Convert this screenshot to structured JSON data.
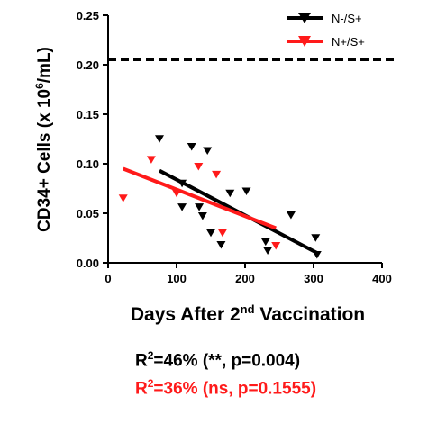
{
  "chart_data": {
    "type": "scatter",
    "ylabel_parts": {
      "pre": "CD34+ Cells (x 10",
      "sup": "6",
      "post": "/mL)"
    },
    "xlabel_parts": {
      "pre": "Days After 2",
      "sup": "nd",
      "post": " Vaccination"
    },
    "xlim": [
      0,
      400
    ],
    "ylim": [
      0,
      0.25
    ],
    "xticks": [
      "0",
      "100",
      "200",
      "300",
      "400"
    ],
    "yticks": [
      "0.00",
      "0.05",
      "0.10",
      "0.15",
      "0.20",
      "0.25"
    ],
    "legend_position": "top-right",
    "reference_line": {
      "y": 0.205,
      "x_range": [
        0,
        420
      ]
    },
    "series": [
      {
        "name": "N-/S+",
        "color": "#000000",
        "points": [
          {
            "x": 75,
            "y": 0.125
          },
          {
            "x": 108,
            "y": 0.08
          },
          {
            "x": 108,
            "y": 0.056
          },
          {
            "x": 122,
            "y": 0.117
          },
          {
            "x": 133,
            "y": 0.056
          },
          {
            "x": 138,
            "y": 0.047
          },
          {
            "x": 145,
            "y": 0.113
          },
          {
            "x": 150,
            "y": 0.03
          },
          {
            "x": 165,
            "y": 0.018
          },
          {
            "x": 178,
            "y": 0.07
          },
          {
            "x": 202,
            "y": 0.072
          },
          {
            "x": 230,
            "y": 0.021
          },
          {
            "x": 233,
            "y": 0.012
          },
          {
            "x": 267,
            "y": 0.048
          },
          {
            "x": 303,
            "y": 0.025
          },
          {
            "x": 305,
            "y": 0.008
          }
        ],
        "fit": {
          "x": [
            75,
            305
          ],
          "y": [
            0.093,
            0.01
          ]
        }
      },
      {
        "name": "N+/S+",
        "color": "#ff1a1a",
        "points": [
          {
            "x": 22,
            "y": 0.065
          },
          {
            "x": 63,
            "y": 0.104
          },
          {
            "x": 100,
            "y": 0.07
          },
          {
            "x": 132,
            "y": 0.097
          },
          {
            "x": 158,
            "y": 0.089
          },
          {
            "x": 167,
            "y": 0.03
          },
          {
            "x": 245,
            "y": 0.017
          }
        ],
        "fit": {
          "x": [
            22,
            245
          ],
          "y": [
            0.095,
            0.035
          ]
        }
      }
    ]
  },
  "stats": {
    "line1": {
      "pre": "R",
      "sup": "2",
      "post": "=46% (**,  p=0.004)"
    },
    "line2": {
      "pre": "R",
      "sup": "2",
      "post": "=36% (ns, p=0.1555)"
    }
  }
}
